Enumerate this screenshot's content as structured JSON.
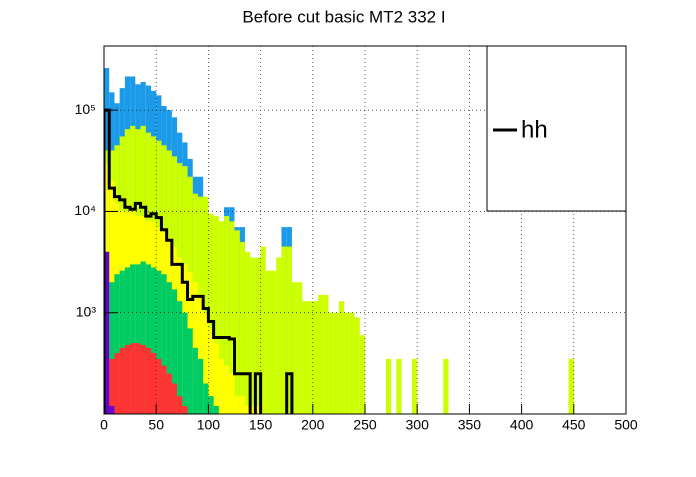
{
  "chart_data": {
    "type": "histogram",
    "title": "Before cut basic MT2 332 I",
    "bins": [
      0,
      5,
      10,
      15,
      20,
      25,
      30,
      35,
      40,
      45,
      50,
      55,
      60,
      65,
      70,
      75,
      80,
      85,
      90,
      95,
      100,
      105,
      110,
      115,
      120,
      125,
      130,
      135,
      140,
      145,
      150,
      155,
      160,
      165,
      170,
      175,
      180,
      185,
      190,
      195,
      200,
      205,
      210,
      215,
      220,
      225,
      230,
      235,
      240,
      245,
      250,
      255,
      260,
      265,
      270,
      275,
      280,
      285,
      290,
      295,
      300,
      305,
      310,
      315,
      320,
      325,
      330,
      335,
      340,
      345,
      350,
      355,
      360,
      365,
      370,
      375,
      380,
      385,
      390,
      395,
      400,
      405,
      410,
      415,
      420,
      425,
      430,
      435,
      440,
      445,
      450,
      455,
      460,
      465,
      470,
      475,
      480,
      485,
      490,
      495,
      500
    ],
    "series": [
      {
        "color": "#1a9ae8",
        "values": [
          260000,
          150000,
          117000,
          165000,
          215000,
          215000,
          180000,
          190000,
          175000,
          155000,
          140000,
          110000,
          100000,
          85000,
          60000,
          48000,
          33000,
          22000,
          22000,
          null,
          null,
          null,
          null,
          11000,
          11000,
          7000,
          7000,
          null,
          null,
          null,
          null,
          null,
          null,
          null,
          7000,
          7000,
          null,
          null,
          null,
          null,
          null,
          null,
          null,
          null,
          null,
          null,
          null,
          null,
          null,
          null,
          null,
          null,
          null,
          null,
          null,
          null,
          null,
          null,
          null,
          null,
          null,
          null,
          null,
          null,
          null,
          null,
          null,
          null,
          null,
          null,
          null,
          null,
          null,
          null,
          null,
          null,
          null,
          null,
          null,
          null,
          null,
          null,
          null,
          null,
          null,
          null,
          null,
          null,
          null,
          null,
          null,
          null,
          null,
          null,
          null,
          null,
          null,
          null,
          null,
          null
        ]
      },
      {
        "color": "#ccff00",
        "values": [
          40000,
          40000,
          45000,
          55000,
          65000,
          70000,
          65000,
          70000,
          60000,
          55000,
          50000,
          45000,
          40000,
          35000,
          30000,
          28000,
          22000,
          15000,
          14000,
          14000,
          9500,
          9000,
          8000,
          9000,
          8000,
          6500,
          5000,
          4000,
          3500,
          3500,
          4500,
          2600,
          2600,
          3500,
          4500,
          4500,
          2000,
          2000,
          1300,
          1300,
          1300,
          1500,
          1500,
          1000,
          1000,
          1300,
          1000,
          1000,
          900,
          600,
          null,
          null,
          null,
          null,
          350,
          null,
          350,
          null,
          null,
          350,
          null,
          null,
          null,
          null,
          null,
          350,
          null,
          null,
          null,
          null,
          null,
          null,
          null,
          null,
          null,
          null,
          null,
          null,
          null,
          null,
          null,
          null,
          null,
          null,
          null,
          null,
          null,
          null,
          null,
          350,
          null,
          null,
          null,
          null,
          null,
          null,
          null,
          null,
          null,
          null
        ]
      },
      {
        "color": "#ffff00",
        "values": [
          30000,
          20000,
          12000,
          10000,
          10000,
          10000,
          9000,
          9000,
          8000,
          8000,
          7000,
          6500,
          5500,
          4500,
          3500,
          3000,
          2500,
          2000,
          1500,
          1000,
          700,
          500,
          350,
          300,
          250,
          150,
          150,
          120,
          120,
          120,
          null,
          null,
          null,
          null,
          null,
          null,
          null,
          null,
          null,
          null,
          null,
          null,
          null,
          null,
          null,
          null,
          null,
          null,
          null,
          null,
          null,
          null,
          null,
          null,
          null,
          null,
          null,
          null,
          null,
          null,
          null,
          null,
          null,
          null,
          null,
          null,
          null,
          null,
          null,
          null,
          null,
          null,
          null,
          null,
          null,
          null,
          null,
          null,
          null,
          null,
          null,
          null,
          null,
          null,
          null,
          null,
          null,
          null,
          null,
          null,
          null,
          null,
          null,
          null,
          null,
          null,
          null,
          null,
          null,
          null
        ]
      },
      {
        "color": "#00cc66",
        "values": [
          null,
          2000,
          2400,
          2600,
          2800,
          3000,
          3000,
          3200,
          3000,
          2800,
          2600,
          2400,
          2000,
          1700,
          1300,
          1000,
          700,
          450,
          350,
          200,
          150,
          120,
          null,
          null,
          null,
          null,
          null,
          null,
          null,
          null,
          null,
          null,
          null,
          null,
          null,
          null,
          null,
          null,
          null,
          null,
          null,
          null,
          null,
          null,
          null,
          null,
          null,
          null,
          null,
          null,
          null,
          null,
          null,
          null,
          null,
          null,
          null,
          null,
          null,
          null,
          null,
          null,
          null,
          null,
          null,
          null,
          null,
          null,
          null,
          null,
          null,
          null,
          null,
          null,
          null,
          null,
          null,
          null,
          null,
          null,
          null,
          null,
          null,
          null,
          null,
          null,
          null,
          null,
          null,
          null,
          null,
          null,
          null,
          null,
          null,
          null,
          null,
          null,
          null,
          null
        ]
      },
      {
        "color": "#ff3333",
        "values": [
          null,
          350,
          400,
          450,
          480,
          500,
          500,
          480,
          450,
          400,
          350,
          300,
          250,
          200,
          150,
          120,
          null,
          null,
          null,
          null,
          null,
          null,
          null,
          null,
          null,
          null,
          null,
          null,
          null,
          null,
          null,
          null,
          null,
          null,
          null,
          null,
          null,
          null,
          null,
          null,
          null,
          null,
          null,
          null,
          null,
          null,
          null,
          null,
          null,
          null,
          null,
          null,
          null,
          null,
          null,
          null,
          null,
          null,
          null,
          null,
          null,
          null,
          null,
          null,
          null,
          null,
          null,
          null,
          null,
          null,
          null,
          null,
          null,
          null,
          null,
          null,
          null,
          null,
          null,
          null,
          null,
          null,
          null,
          null,
          null,
          null,
          null,
          null,
          null,
          null,
          null,
          null,
          null,
          null,
          null,
          null,
          null,
          null,
          null,
          null
        ]
      },
      {
        "color": "#6600cc",
        "values": [
          4000,
          120,
          null,
          null,
          null,
          null,
          null,
          null,
          null,
          null,
          null,
          null,
          null,
          null,
          null,
          null,
          null,
          null,
          null,
          null,
          null,
          null,
          null,
          null,
          null,
          null,
          null,
          null,
          null,
          null,
          null,
          null,
          null,
          null,
          null,
          null,
          null,
          null,
          null,
          null,
          null,
          null,
          null,
          null,
          null,
          null,
          null,
          null,
          null,
          null,
          null,
          null,
          null,
          null,
          null,
          null,
          null,
          null,
          null,
          null,
          null,
          null,
          null,
          null,
          null,
          null,
          null,
          null,
          null,
          null,
          null,
          null,
          null,
          null,
          null,
          null,
          null,
          null,
          null,
          null,
          null,
          null,
          null,
          null,
          null,
          null,
          null,
          null,
          null,
          null,
          null,
          null,
          null,
          null,
          null,
          null,
          null,
          null,
          null,
          null
        ]
      },
      {
        "name": "hh",
        "color": "#000000",
        "line": true,
        "values": [
          100000,
          17000,
          14000,
          13000,
          11000,
          10500,
          12000,
          11000,
          9000,
          9500,
          8700,
          6600,
          5200,
          3000,
          3000,
          2000,
          1350,
          1450,
          1450,
          1100,
          820,
          570,
          570,
          570,
          550,
          250,
          250,
          250,
          null,
          250,
          null,
          null,
          null,
          null,
          null,
          250,
          null,
          null,
          null,
          null,
          null,
          null,
          null,
          null,
          null,
          null,
          null,
          null,
          null,
          null,
          null,
          null,
          null,
          null,
          null,
          null,
          null,
          null,
          null,
          null,
          null,
          null,
          null,
          null,
          null,
          null,
          null,
          null,
          null,
          null,
          null,
          null,
          null,
          null,
          null,
          null,
          null,
          null,
          null,
          null,
          null,
          null,
          null,
          null,
          null,
          null,
          null,
          null,
          null,
          null,
          null,
          null,
          null,
          null,
          null,
          null,
          null,
          null,
          null,
          null
        ]
      }
    ],
    "xlim": [
      0,
      500
    ],
    "xticks": [
      0,
      50,
      100,
      150,
      200,
      250,
      300,
      350,
      400,
      450,
      500
    ],
    "ylim": [
      100,
      430000
    ],
    "ylog": true,
    "yticks": [
      {
        "value": 1000,
        "label": "10³"
      },
      {
        "value": 10000,
        "label": "10⁴"
      },
      {
        "value": 100000,
        "label": "10⁵"
      }
    ],
    "grid": true,
    "legend": "top-right"
  }
}
